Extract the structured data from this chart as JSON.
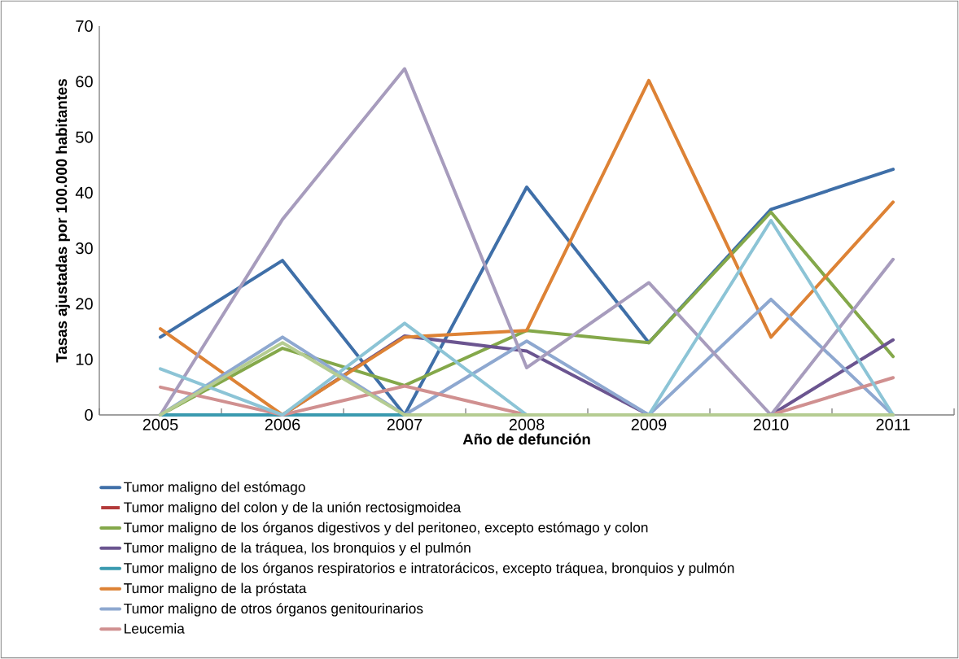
{
  "chart_data": {
    "type": "line",
    "xlabel": "Año de defunción",
    "ylabel": "Tasas ajustadas por 100.000 habitantes",
    "categories": [
      "2005",
      "2006",
      "2007",
      "2008",
      "2009",
      "2010",
      "2011"
    ],
    "ylim": [
      0,
      70
    ],
    "yticks": [
      0,
      10,
      20,
      30,
      40,
      50,
      60,
      70
    ],
    "grid": false,
    "legend": "bottom",
    "series": [
      {
        "name": "Tumor maligno del estómago",
        "color": "#3f6fa8",
        "values": [
          14,
          27.8,
          0,
          41,
          13,
          37,
          44.2
        ]
      },
      {
        "name": "Tumor maligno del colon y de la unión rectosigmoidea",
        "color": "#b33a3a",
        "values": [
          null,
          null,
          null,
          null,
          null,
          null,
          null
        ]
      },
      {
        "name": "Tumor maligno de los órganos digestivos y del peritoneo, excepto estómago y colon",
        "color": "#84a84a",
        "values": [
          0,
          12,
          5.3,
          15.2,
          13,
          36.5,
          10.5
        ]
      },
      {
        "name": "Tumor maligno de la tráquea, los bronquios y el pulmón",
        "color": "#6b5590",
        "values": [
          null,
          0,
          14.2,
          11.5,
          0,
          0,
          13.5
        ]
      },
      {
        "name": "Tumor maligno de los órganos respiratorios e intratorácicos, excepto tráquea, bronquios y pulmón",
        "color": "#3a9aaf",
        "values": [
          0,
          0,
          0,
          null,
          null,
          null,
          null
        ]
      },
      {
        "name": "Tumor maligno de la próstata",
        "color": "#dd8235",
        "values": [
          15.5,
          0,
          14,
          15.2,
          60.2,
          14,
          38.3
        ]
      },
      {
        "name": "Tumor maligno de otros órganos genitourinarios",
        "color": "#8ea8d0",
        "values": [
          0,
          14,
          0,
          13.3,
          0,
          20.8,
          0
        ]
      },
      {
        "name": "Leucemia",
        "color": "#d09090",
        "values": [
          5,
          0,
          5.2,
          0,
          0,
          0,
          6.7
        ]
      },
      {
        "color": "#a79cbd",
        "values": [
          0,
          35.2,
          62.3,
          8.5,
          23.8,
          0,
          28
        ]
      },
      {
        "color": "#8cc4d6",
        "values": [
          8.3,
          0,
          16.5,
          0,
          0,
          35,
          0
        ]
      },
      {
        "color": "#b5cc92",
        "values": [
          0,
          13,
          0,
          0,
          0,
          0,
          0
        ]
      }
    ]
  }
}
